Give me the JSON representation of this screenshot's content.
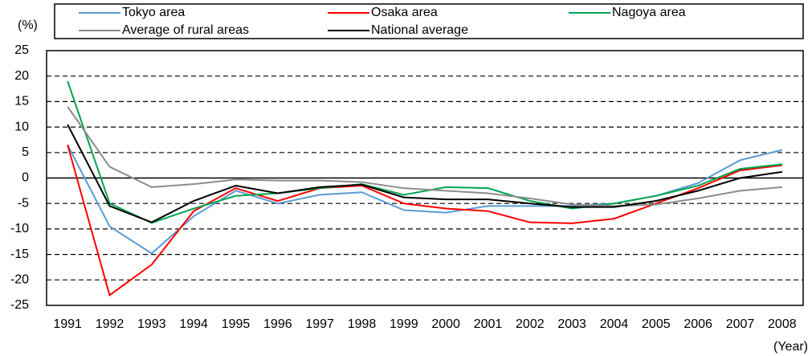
{
  "chart_data": {
    "type": "line",
    "y_label": "(%)",
    "x_label": "(Year)",
    "categories": [
      "1991",
      "1992",
      "1993",
      "1994",
      "1995",
      "1996",
      "1997",
      "1998",
      "1999",
      "2000",
      "2001",
      "2002",
      "2003",
      "2004",
      "2005",
      "2006",
      "2007",
      "2008"
    ],
    "series": [
      {
        "name": "Tokyo area",
        "color": "#5b9bd5",
        "values": [
          6.5,
          -9.5,
          -14.8,
          -7.5,
          -2.5,
          -5,
          -3.3,
          -2.8,
          -6.3,
          -6.8,
          -5.5,
          -5.5,
          -5.5,
          -5,
          -3.5,
          -1,
          3.5,
          5.5
        ]
      },
      {
        "name": "Osaka area",
        "color": "#ff0000",
        "values": [
          6.5,
          -23,
          -17,
          -6.5,
          -2,
          -4.5,
          -2,
          -1.5,
          -5,
          -6,
          -6.5,
          -8.7,
          -8.9,
          -8,
          -5,
          -2,
          1.5,
          2.5
        ]
      },
      {
        "name": "Nagoya area",
        "color": "#00a550",
        "values": [
          19,
          -5,
          -8.8,
          -6,
          -3.5,
          -3,
          -2,
          -1.2,
          -3.3,
          -1.8,
          -2,
          -4.5,
          -6,
          -5,
          -3.5,
          -1.5,
          1.8,
          2.7
        ]
      },
      {
        "name": "Average of rural areas",
        "color": "#8c8c8c",
        "values": [
          14,
          2.2,
          -1.8,
          -1.2,
          -0.3,
          -0.5,
          -0.5,
          -0.8,
          -2,
          -2.5,
          -3,
          -4,
          -5.2,
          -5.5,
          -5.2,
          -4,
          -2.5,
          -1.8
        ]
      },
      {
        "name": "National average",
        "color": "#000000",
        "values": [
          10.5,
          -5.5,
          -8.7,
          -4.5,
          -1.5,
          -3,
          -1.8,
          -1.3,
          -3.8,
          -4.2,
          -4.2,
          -5,
          -5.7,
          -5.7,
          -4.5,
          -2.5,
          0,
          1.2
        ]
      }
    ],
    "ylim": [
      -25,
      25
    ],
    "yticks": [
      -25,
      -20,
      -15,
      -10,
      -5,
      0,
      5,
      10,
      15,
      20,
      25
    ],
    "grid": true
  }
}
